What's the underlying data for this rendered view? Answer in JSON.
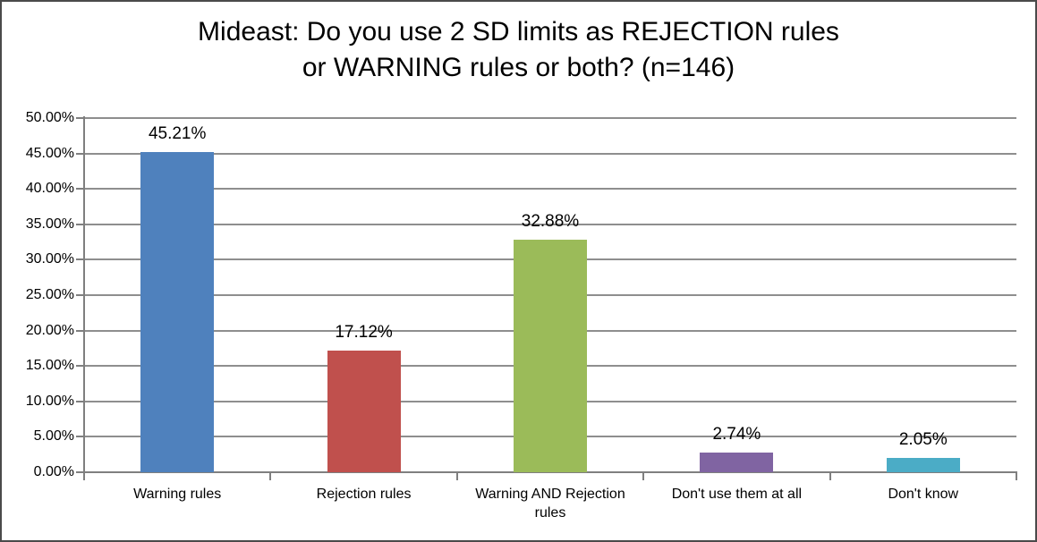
{
  "title": {
    "line1": "Mideast: Do you use 2 SD limits as REJECTION rules",
    "line2": "or WARNING rules or both? (n=146)"
  },
  "chart_data": {
    "type": "bar",
    "title": "Mideast: Do you use 2 SD limits as REJECTION rules or WARNING rules or both? (n=146)",
    "categories": [
      "Warning rules",
      "Rejection rules",
      "Warning AND Rejection rules",
      "Don't use them at all",
      "Don't know"
    ],
    "values": [
      45.21,
      17.12,
      32.88,
      2.74,
      2.05
    ],
    "data_labels": [
      "45.21%",
      "17.12%",
      "32.88%",
      "2.74%",
      "2.05%"
    ],
    "bar_colors": [
      "#4f81bd",
      "#c0504d",
      "#9bbb59",
      "#8064a2",
      "#4bacc6"
    ],
    "ylim": [
      0,
      50
    ],
    "ytick_step": 5,
    "ytick_labels": [
      "0.00%",
      "5.00%",
      "10.00%",
      "15.00%",
      "20.00%",
      "25.00%",
      "30.00%",
      "35.00%",
      "40.00%",
      "45.00%",
      "50.00%"
    ],
    "xlabel": "",
    "ylabel": "",
    "grid": "horizontal",
    "legend": "none"
  },
  "colors": {
    "gridline": "#8e8e8e",
    "axis": "#7f7f7f",
    "text": "#000000",
    "border": "#4a4a4a",
    "background": "#ffffff"
  }
}
